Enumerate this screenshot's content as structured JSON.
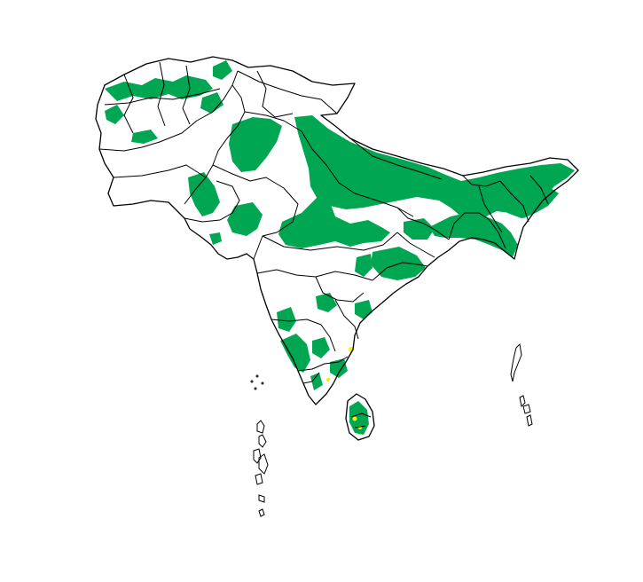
{
  "map": {
    "region": "South Asia",
    "colors": {
      "background": "#ffffff",
      "boundary": "#000000",
      "primary_fill": "#00a651",
      "secondary_fill": "#f2f200"
    },
    "legend": "none",
    "labels": []
  }
}
